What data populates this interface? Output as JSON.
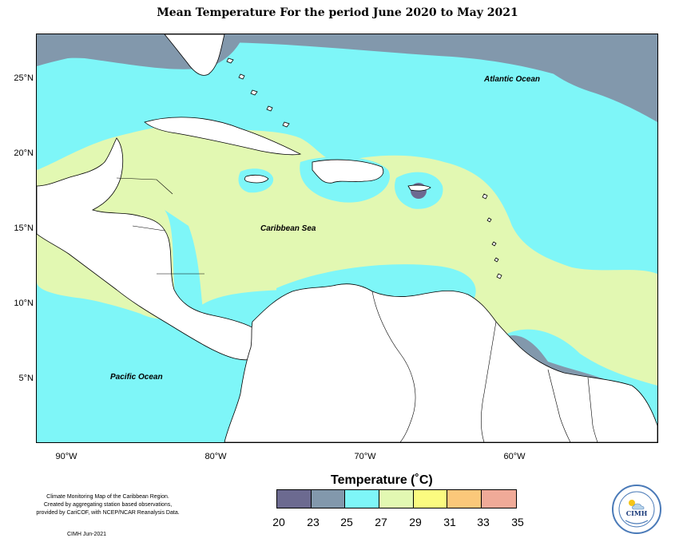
{
  "title": "Mean Temperature For the period June 2020 to May 2021",
  "map": {
    "latitude_labels": [
      "25°N",
      "20°N",
      "15°N",
      "10°N",
      "5°N"
    ],
    "longitude_labels": [
      "90°W",
      "80°W",
      "70°W",
      "60°W"
    ],
    "place_labels": {
      "atlantic": "Atlantic Ocean",
      "caribbean": "Caribbean Sea",
      "pacific": "Pacific Ocean"
    },
    "colors": {
      "t20_23": "#6c6a90",
      "t23_25": "#8298ac",
      "t25_27": "#7ef6f8",
      "t27_29": "#e2f8b2",
      "land": "#ffffff",
      "outline": "#000000"
    }
  },
  "legend": {
    "title": "Temperature (˚C)",
    "ticks": [
      "20",
      "23",
      "25",
      "27",
      "29",
      "31",
      "33",
      "35"
    ],
    "colors": [
      "#6c6a90",
      "#8298ac",
      "#7ef6f8",
      "#e2f8b2",
      "#fbfb80",
      "#fbc87a",
      "#f0aa98"
    ]
  },
  "footer": {
    "line1": "Climate Monitoring Map of the Caribbean Region.",
    "line2": "Created by aggregating station based observations,",
    "line3": "provided by CariCOF, with NCEP/NCAR Reanalysis Data.",
    "stamp": "CIMH  Jun-2021"
  },
  "logo": {
    "text": "CIMH",
    "ring_text": "Caribbean Institute for Meteorology and Hydrology"
  }
}
